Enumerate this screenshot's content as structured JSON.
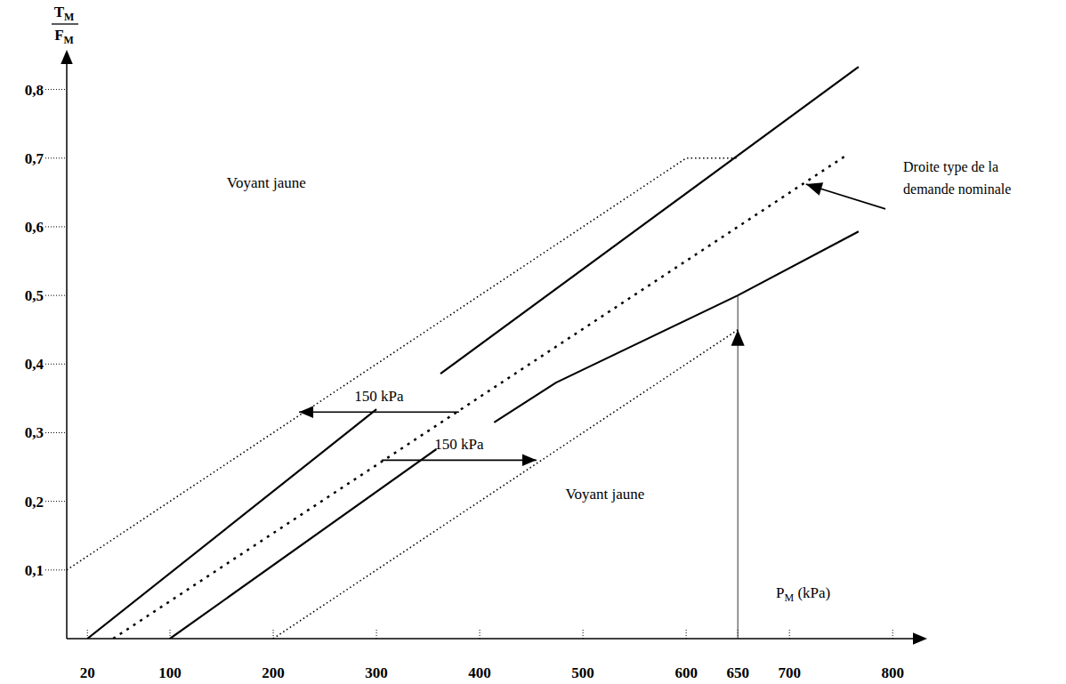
{
  "chart_data": {
    "type": "line",
    "ylabel": {
      "numerator": "TM",
      "denominator": "FM"
    },
    "xlabel": {
      "symbol": "PM",
      "unit": "(kPa)"
    },
    "xlim": [
      0,
      830
    ],
    "xticks": [
      20,
      100,
      200,
      300,
      400,
      500,
      600,
      650,
      700,
      800
    ],
    "ylim": [
      0,
      0.85
    ],
    "yticks": [
      {
        "value": 0.1,
        "label": "0,1"
      },
      {
        "value": 0.2,
        "label": "0,2"
      },
      {
        "value": 0.3,
        "label": "0,3"
      },
      {
        "value": 0.4,
        "label": "0,4"
      },
      {
        "value": 0.5,
        "label": "0,5"
      },
      {
        "value": 0.6,
        "label": "0,6"
      },
      {
        "value": 0.7,
        "label": "0,7"
      },
      {
        "value": 0.8,
        "label": "0,8"
      }
    ],
    "grid": false,
    "series": [
      {
        "color": "#000000",
        "line_style": "solid",
        "x": [
          20,
          300
        ],
        "values": [
          0,
          0.334
        ]
      },
      {
        "color": "#000000",
        "line_style": "solid",
        "x": [
          362,
          767
        ],
        "values": [
          0.386,
          0.833
        ]
      },
      {
        "color": "#000000",
        "line_style": "dashed",
        "x": [
          45,
          754
        ],
        "values": [
          0,
          0.703
        ]
      },
      {
        "color": "#000000",
        "line_style": "solid",
        "x": [
          100,
          358
        ],
        "values": [
          0,
          0.276
        ]
      },
      {
        "color": "#000000",
        "line_style": "solid",
        "x": [
          414,
          474,
          650,
          767
        ],
        "values": [
          0.315,
          0.373,
          0.5,
          0.593
        ]
      },
      {
        "color": "#000000",
        "line_style": "dotted",
        "x": [
          0,
          600,
          650
        ],
        "values": [
          0.1,
          0.7,
          0.7
        ]
      },
      {
        "color": "#000000",
        "line_style": "dotted",
        "x": [
          200,
          650
        ],
        "values": [
          0,
          0.45
        ]
      }
    ],
    "annotations": [
      {
        "text": "Voyant jaune",
        "x": 155,
        "y": 0.665
      },
      {
        "text": "Voyant jaune",
        "x": 483,
        "y": 0.211
      },
      {
        "text": "150 kPa",
        "arrow_x": [
          380,
          225
        ],
        "y": 0.33
      },
      {
        "text": "150 kPa",
        "arrow_x": [
          305,
          455
        ],
        "y": 0.26
      },
      {
        "lines": [
          "Droite type de la",
          "demande nominale"
        ],
        "arrow_from": [
          793,
          0.626
        ],
        "arrow_to": [
          716,
          0.662
        ]
      },
      {
        "x": 650,
        "y_from": 0,
        "y_to": 0.5,
        "arrow_at": 0.45
      }
    ]
  }
}
